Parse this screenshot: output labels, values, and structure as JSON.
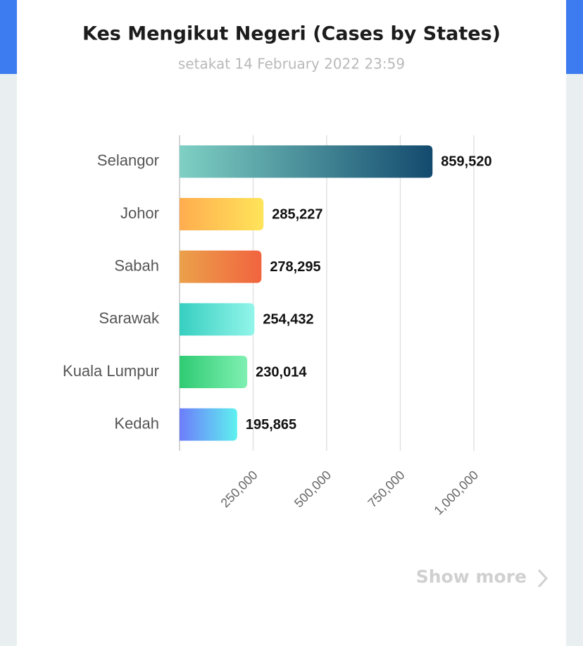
{
  "chart_data": {
    "type": "bar",
    "orientation": "horizontal",
    "title": "Kes Mengikut Negeri (Cases by States)",
    "subtitle": "setakat 14 February 2022 23:59",
    "categories": [
      "Selangor",
      "Johor",
      "Sabah",
      "Sarawak",
      "Kuala Lumpur",
      "Kedah"
    ],
    "values": [
      859520,
      285227,
      278295,
      254432,
      230014,
      195865
    ],
    "value_labels": [
      "859,520",
      "285,227",
      "278,295",
      "254,432",
      "230,014",
      "195,865"
    ],
    "colors": [
      [
        "#7fd0c4",
        "#134a6e"
      ],
      [
        "#ffad4f",
        "#ffe45a"
      ],
      [
        "#eba14a",
        "#f1643f"
      ],
      [
        "#36cfc0",
        "#93f5ea"
      ],
      [
        "#2fcb73",
        "#7ff0b2"
      ],
      [
        "#6d7dfb",
        "#5ef1ef"
      ]
    ],
    "xlim": [
      0,
      1000000
    ],
    "xticks": [
      {
        "value": 250000,
        "label": "250,000"
      },
      {
        "value": 500000,
        "label": "500,000"
      },
      {
        "value": 750000,
        "label": "750,000"
      },
      {
        "value": 1000000,
        "label": "1,000,000"
      }
    ],
    "grid": true
  },
  "show_more": "Show more"
}
